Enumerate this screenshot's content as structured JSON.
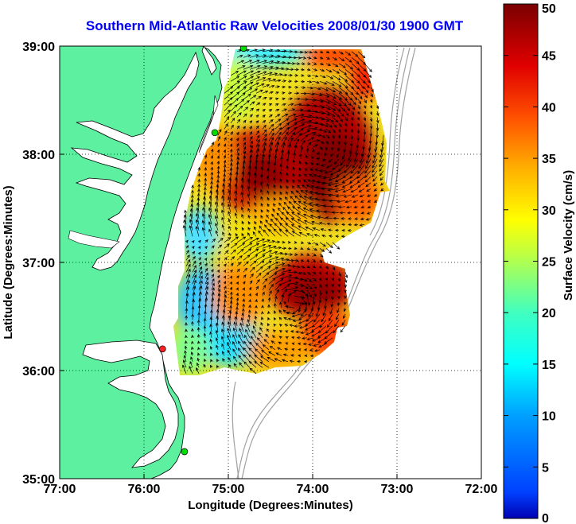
{
  "chart_data": {
    "type": "heatmap",
    "title": "Southern Mid-Atlantic Raw Velocities 2008/01/30 1900 GMT",
    "xlabel": "Longitude (Degrees:Minutes)",
    "ylabel": "Latitude (Degrees:Minutes)",
    "colorbar_label": "Surface Velocity (cm/s)",
    "xlim": [
      -77,
      -72
    ],
    "ylim": [
      35,
      39
    ],
    "x_ticks": [
      {
        "value": -77,
        "label": "77:00"
      },
      {
        "value": -76,
        "label": "76:00"
      },
      {
        "value": -75,
        "label": "75:00"
      },
      {
        "value": -74,
        "label": "74:00"
      },
      {
        "value": -73,
        "label": "73:00"
      },
      {
        "value": -72,
        "label": "72:00"
      }
    ],
    "y_ticks": [
      {
        "value": 35,
        "label": "35:00"
      },
      {
        "value": 36,
        "label": "36:00"
      },
      {
        "value": 37,
        "label": "37:00"
      },
      {
        "value": 38,
        "label": "38:00"
      },
      {
        "value": 39,
        "label": "39:00"
      }
    ],
    "colorbar_range": [
      0,
      50
    ],
    "colorbar_ticks": [
      {
        "value": 0,
        "label": "0"
      },
      {
        "value": 5,
        "label": "5"
      },
      {
        "value": 10,
        "label": "10"
      },
      {
        "value": 15,
        "label": "15"
      },
      {
        "value": 20,
        "label": "20"
      },
      {
        "value": 25,
        "label": "25"
      },
      {
        "value": 30,
        "label": "30"
      },
      {
        "value": 35,
        "label": "35"
      },
      {
        "value": 40,
        "label": "40"
      },
      {
        "value": 45,
        "label": "45"
      },
      {
        "value": 50,
        "label": "50"
      }
    ],
    "colormap": "jet",
    "grid": true,
    "land_color": "#5cf0a0",
    "velocity_field": {
      "lon_range": [
        -75.5,
        -72.9
      ],
      "lat_range": [
        35.95,
        38.95
      ],
      "high_speed_cores": [
        {
          "lon": -74.1,
          "lat": 37.75,
          "speed": 48
        },
        {
          "lon": -74.85,
          "lat": 37.9,
          "speed": 40
        },
        {
          "lon": -74.2,
          "lat": 36.6,
          "speed": 48
        }
      ],
      "low_speed_zones": [
        {
          "lon": -75.2,
          "lat": 36.3,
          "speed": 10
        },
        {
          "lon": -74.7,
          "lat": 38.9,
          "speed": 12
        }
      ]
    },
    "stations": [
      {
        "lon": -74.82,
        "lat": 38.98,
        "color": "#00dd00"
      },
      {
        "lon": -75.16,
        "lat": 38.2,
        "color": "#00dd00"
      },
      {
        "lon": -75.78,
        "lat": 36.2,
        "color": "#ff2020"
      },
      {
        "lon": -75.52,
        "lat": 35.25,
        "color": "#00dd00"
      }
    ]
  }
}
